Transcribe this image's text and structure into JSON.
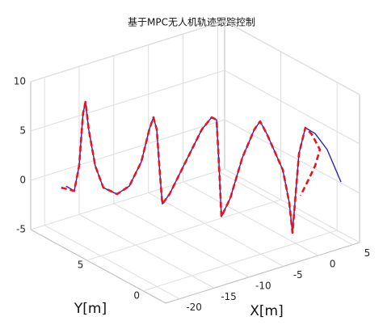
{
  "chart_data": {
    "type": "line3d",
    "title": "基于MPC无人机轨迹跟踪控制",
    "xlabel": "X[m]",
    "ylabel": "Y[m]",
    "xlim": [
      -22,
      6
    ],
    "ylim": [
      -2,
      10
    ],
    "zlim": [
      -5,
      10
    ],
    "xticks": [
      -20,
      -15,
      -10,
      -5,
      0,
      5
    ],
    "yticks": [
      0,
      5
    ],
    "zticks": [
      -5,
      0,
      5,
      10
    ],
    "grid": true,
    "series": [
      {
        "color": "#2424c4",
        "linestyle": "solid",
        "x": [
          -21.76,
          -20.97,
          -20.5,
          -20.11,
          -19.87,
          -19.56,
          -18.93,
          -18.14,
          -16.81,
          -15.63,
          -14.45,
          -13.67,
          -13.27,
          -12.96,
          -12.65,
          -12.41,
          -11.71,
          -10.14,
          -8.57,
          -7.62,
          -7.15,
          -6.92,
          -6.68,
          -5.82,
          -4.64,
          -3.47,
          -2.92,
          -2.29,
          -0.72,
          -0.09,
          0.23,
          0.54,
          0.85,
          1.48,
          2.42,
          3.6,
          4.94
        ],
        "y": [
          7,
          6.76,
          6.62,
          6.51,
          6.44,
          6.34,
          6.15,
          5.92,
          5.52,
          5.16,
          4.81,
          4.58,
          4.46,
          4.36,
          4.27,
          4.2,
          3.99,
          3.52,
          3.05,
          2.76,
          2.62,
          2.55,
          2.48,
          2.22,
          1.87,
          1.52,
          1.35,
          1.16,
          0.69,
          0.51,
          0.41,
          0.32,
          0.22,
          0.04,
          -0.25,
          -0.6,
          -1.0
        ],
        "z": [
          1.22,
          0.71,
          3.23,
          8.55,
          9.69,
          6.89,
          3.18,
          0.94,
          0.24,
          1.02,
          3.44,
          6.7,
          7.91,
          6.67,
          2.15,
          -0.89,
          0.07,
          3.3,
          6.53,
          7.73,
          7.46,
          3.19,
          -2.39,
          -0.53,
          3.53,
          6.36,
          7.16,
          5.91,
          2.17,
          -1.13,
          -4.25,
          -0.33,
          3.76,
          6.36,
          5.75,
          4.08,
          0.75
        ]
      },
      {
        "color": "#e8141e",
        "linestyle": "dashed",
        "x": [
          -22.23,
          -20.97,
          -20.5,
          -20.11,
          -19.87,
          -19.56,
          -18.93,
          -18.14,
          -16.81,
          -15.63,
          -14.45,
          -13.67,
          -13.27,
          -12.96,
          -12.65,
          -12.41,
          -11.71,
          -10.14,
          -8.57,
          -7.62,
          -7.15,
          -6.92,
          -6.68,
          -5.82,
          -4.64,
          -3.47,
          -2.92,
          -2.29,
          -0.72,
          -0.09,
          0.23,
          0.54,
          0.85,
          1.48,
          2.11,
          2.89,
          2.42,
          1.64,
          1.01
        ],
        "y": [
          7.14,
          6.76,
          6.62,
          6.51,
          6.44,
          6.34,
          6.15,
          5.92,
          5.52,
          5.16,
          4.81,
          4.58,
          4.46,
          4.36,
          4.27,
          4.2,
          3.99,
          3.52,
          3.05,
          2.76,
          2.62,
          2.55,
          2.48,
          2.22,
          1.87,
          1.52,
          1.35,
          1.16,
          0.69,
          0.51,
          0.41,
          0.32,
          0.22,
          0.04,
          -0.15,
          -0.39,
          -0.25,
          -0.01,
          0.18
        ],
        "z": [
          1.08,
          0.71,
          3.23,
          8.55,
          9.69,
          6.89,
          3.18,
          0.94,
          0.24,
          1.02,
          3.44,
          6.7,
          7.91,
          6.67,
          2.15,
          -0.89,
          0.07,
          3.3,
          6.53,
          7.73,
          7.46,
          3.19,
          -2.39,
          -0.53,
          3.53,
          6.36,
          7.16,
          5.91,
          2.17,
          -1.13,
          -4.25,
          -0.33,
          3.76,
          6.36,
          5.68,
          4.1,
          2.48,
          0.78,
          -0.51
        ]
      }
    ]
  }
}
